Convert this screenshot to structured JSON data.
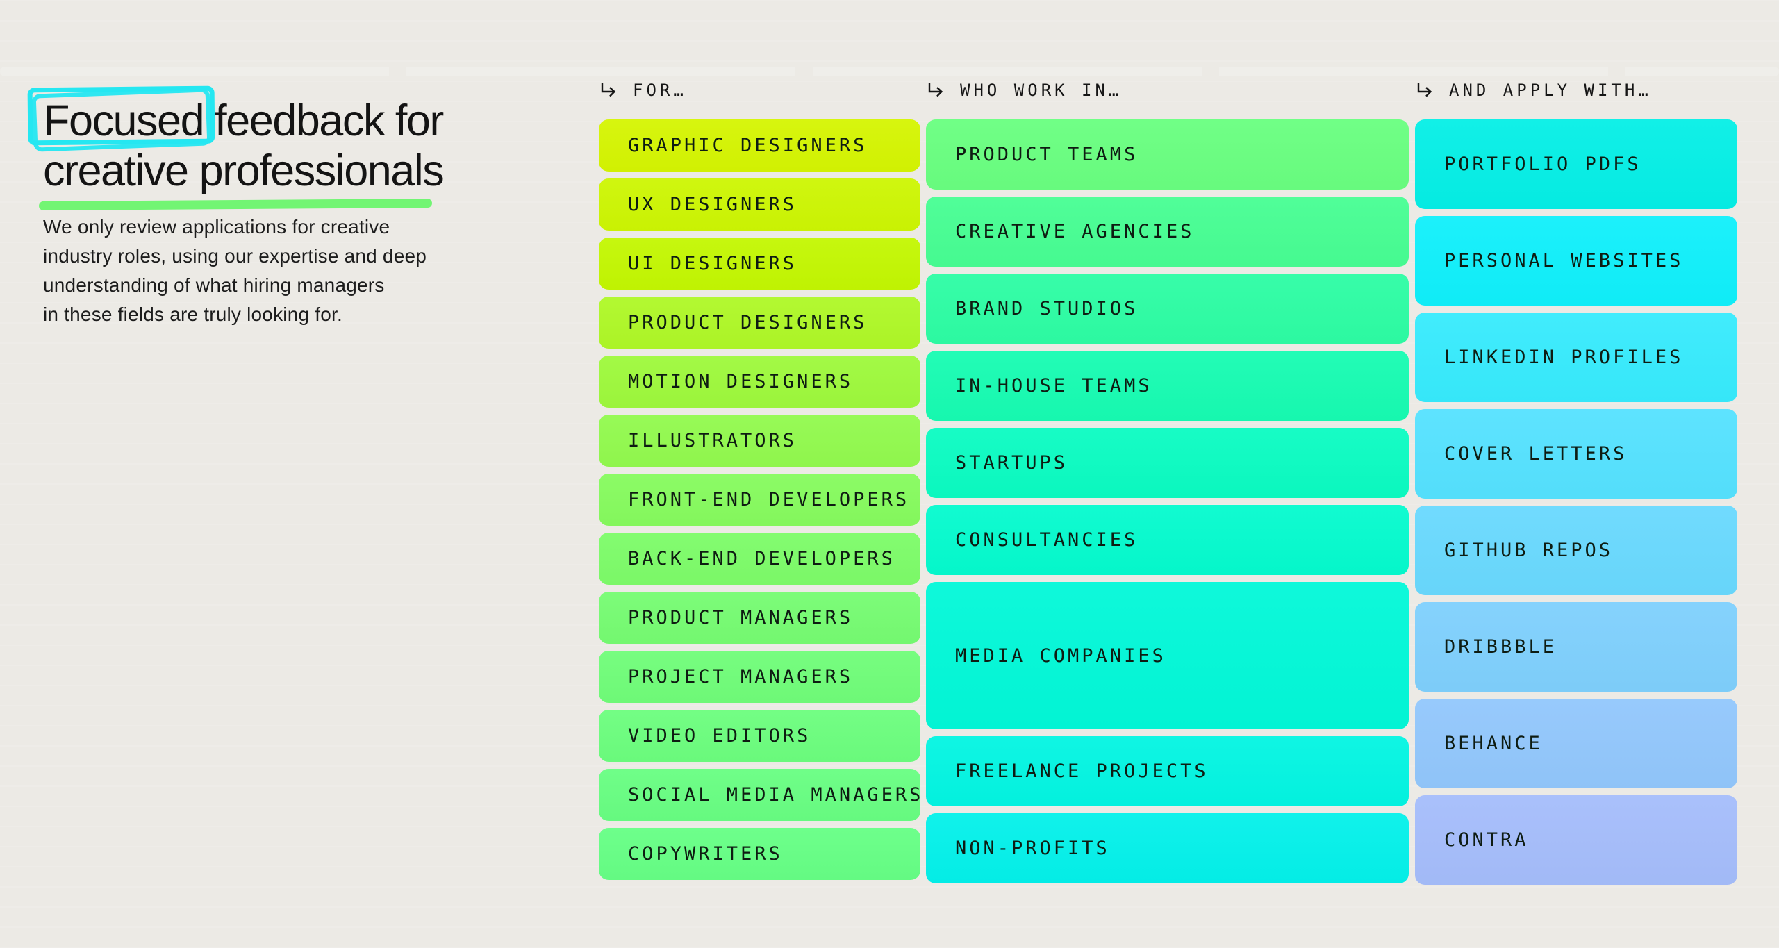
{
  "page": {
    "background": "#ECEAE5",
    "card_text_color": "#0E1C12",
    "header_text_color": "#151515"
  },
  "hero": {
    "title": {
      "highlighted_word": "Focused",
      "line1_rest": "feedback for",
      "line2": "creative professionals"
    },
    "accent": {
      "highlight_box_color": "#25E7F1",
      "underline_color": "#72F573"
    },
    "paragraph_lines": [
      "We only review applications for creative",
      "industry roles, using our expertise and deep",
      "understanding of what hiring managers",
      "in these fields are truly looking for."
    ]
  },
  "columns": [
    {
      "key": "for",
      "header_label": "FOR…",
      "items": [
        {
          "label": "GRAPHIC DESIGNERS",
          "color": "#D5F502"
        },
        {
          "label": "UX DESIGNERS",
          "color": "#CDF603"
        },
        {
          "label": "UI DESIGNERS",
          "color": "#C3F702"
        },
        {
          "label": "PRODUCT DESIGNERS",
          "color": "#AFF827"
        },
        {
          "label": "MOTION DESIGNERS",
          "color": "#9EF93C"
        },
        {
          "label": "ILLUSTRATORS",
          "color": "#92FA4E"
        },
        {
          "label": "FRONT-END DEVELOPERS",
          "color": "#86FB5E"
        },
        {
          "label": "BACK-END DEVELOPERS",
          "color": "#7DFC69"
        },
        {
          "label": "PRODUCT MANAGERS",
          "color": "#76FC72"
        },
        {
          "label": "PROJECT MANAGERS",
          "color": "#70FD79"
        },
        {
          "label": "VIDEO EDITORS",
          "color": "#6CFE7E"
        },
        {
          "label": "SOCIAL MEDIA MANAGERS",
          "color": "#68FE82"
        },
        {
          "label": "COPYWRITERS",
          "color": "#66FF85"
        }
      ]
    },
    {
      "key": "who-work-in",
      "header_label": "WHO WORK IN…",
      "items": [
        {
          "label": "PRODUCT TEAMS",
          "color": "#69FF80"
        },
        {
          "label": "CREATIVE AGENCIES",
          "color": "#47FE93"
        },
        {
          "label": "BRAND STUDIOS",
          "color": "#2DFDA4"
        },
        {
          "label": "IN-HOUSE TEAMS",
          "color": "#17FCB2"
        },
        {
          "label": "STARTUPS",
          "color": "#0BFCC2"
        },
        {
          "label": "CONSULTANCIES",
          "color": "#05FBCE"
        },
        {
          "label": "MEDIA COMPANIES",
          "color": "#02F8D8",
          "tall": true
        },
        {
          "label": "FREELANCE PROJECTS",
          "color": "#03F5E2"
        },
        {
          "label": "NON-PROFITS",
          "color": "#04F1EA"
        }
      ]
    },
    {
      "key": "and-apply-with",
      "header_label": "AND APPLY WITH…",
      "items": [
        {
          "label": "PORTFOLIO PDFS",
          "color": "#05EFE6"
        },
        {
          "label": "PERSONAL WEBSITES",
          "color": "#10F0FB"
        },
        {
          "label": "LINKEDIN PROFILES",
          "color": "#37EBFD"
        },
        {
          "label": "COVER LETTERS",
          "color": "#55E2FF"
        },
        {
          "label": "GITHUB REPOS",
          "color": "#69D9FE"
        },
        {
          "label": "DRIBBBLE",
          "color": "#7FD0FD"
        },
        {
          "label": "BEHANCE",
          "color": "#92C7FC"
        },
        {
          "label": "CONTRA",
          "color": "#A5BDFB"
        }
      ]
    }
  ]
}
